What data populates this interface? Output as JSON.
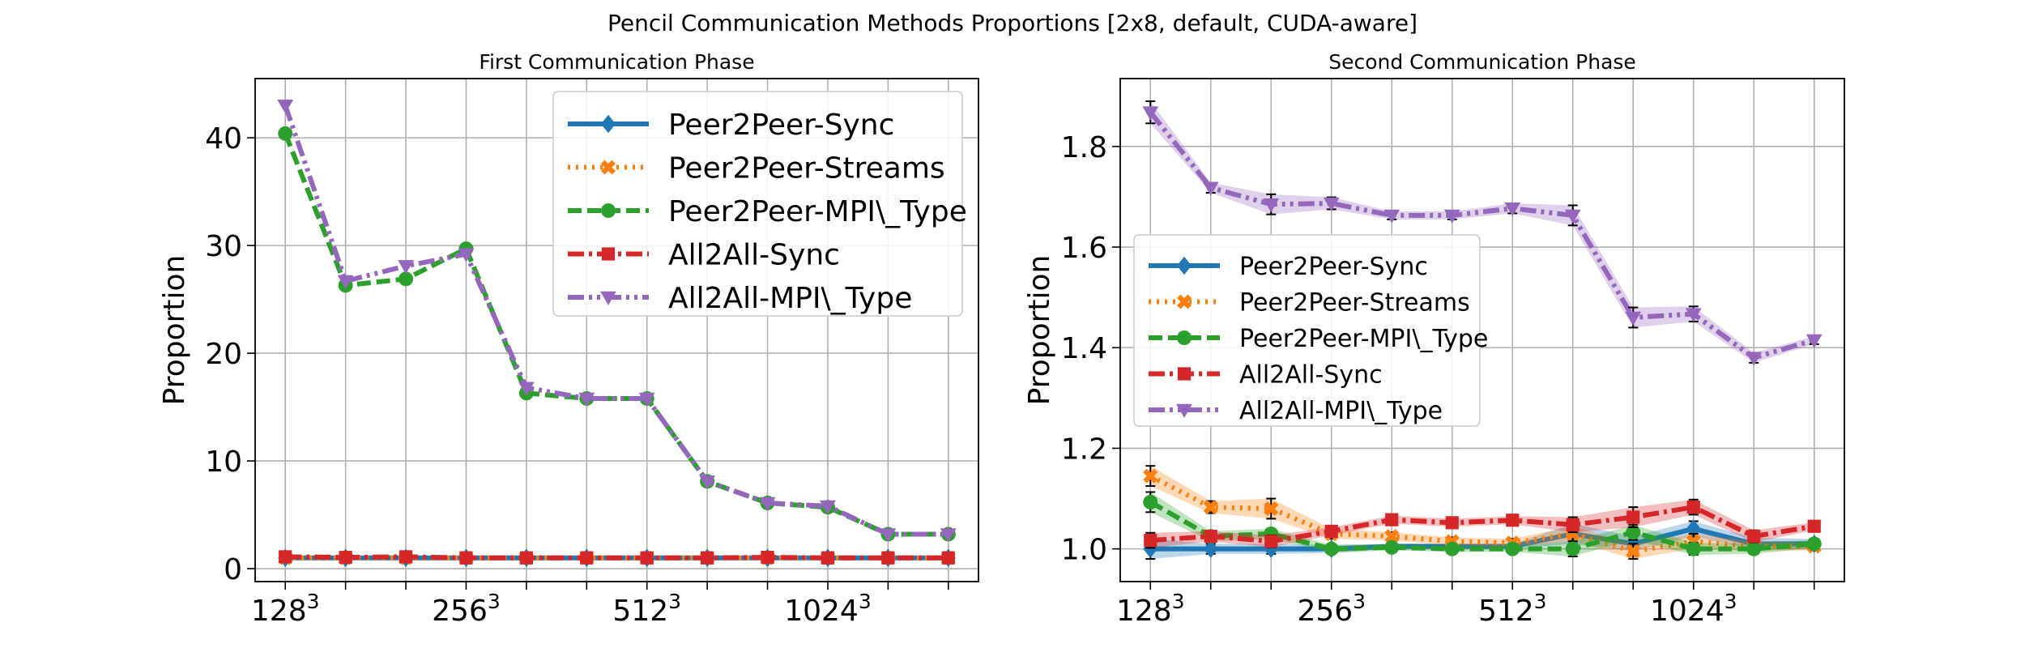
{
  "title": "Pencil Communication Methods Proportions [2x8, default, CUDA-aware]",
  "colors": {
    "Peer2Peer-Sync": "#1f77b4",
    "Peer2Peer-Streams": "#ff7f0e",
    "Peer2Peer-MPI\\_Type": "#2ca02c",
    "All2All-Sync": "#d62728",
    "All2All-MPI\\_Type": "#9467bd"
  },
  "chart_data": [
    {
      "type": "line",
      "title": "First Communication Phase",
      "xlabel": "",
      "ylabel": "Proportion",
      "x": [
        0,
        1,
        2,
        3,
        4,
        5,
        6,
        7,
        8,
        9,
        10,
        11
      ],
      "xtick_positions": [
        0,
        3,
        6,
        9
      ],
      "xtick_bases": [
        "128",
        "256",
        "512",
        "1024"
      ],
      "xtick_exponent": "3",
      "xlim": [
        -0.5,
        11.5
      ],
      "ylim": [
        -1.2,
        45.5
      ],
      "yticks": [
        0,
        10,
        20,
        30,
        40
      ],
      "grid": true,
      "legend": "top-right",
      "series": [
        {
          "name": "Peer2Peer-Sync",
          "values": [
            1,
            1,
            1,
            1,
            1,
            1,
            1,
            1,
            1,
            1,
            1,
            1
          ]
        },
        {
          "name": "Peer2Peer-Streams",
          "values": [
            1,
            1,
            1,
            1,
            1,
            1,
            1,
            1,
            1,
            1,
            1,
            1
          ]
        },
        {
          "name": "Peer2Peer-MPI\\_Type",
          "values": [
            40.4,
            26.3,
            26.9,
            29.7,
            16.3,
            15.8,
            15.8,
            8.1,
            6.1,
            5.7,
            3.2,
            3.2
          ]
        },
        {
          "name": "All2All-Sync",
          "values": [
            1.1,
            1.05,
            1.1,
            1,
            1,
            1,
            1,
            1,
            1.05,
            1,
            1,
            1
          ]
        },
        {
          "name": "All2All-MPI\\_Type",
          "values": [
            43,
            26.7,
            28.1,
            29.2,
            16.8,
            15.8,
            15.8,
            8.1,
            6.1,
            5.8,
            3.2,
            3.2
          ]
        }
      ]
    },
    {
      "type": "line",
      "title": "Second Communication Phase",
      "xlabel": "",
      "ylabel": "Proportion",
      "x": [
        0,
        1,
        2,
        3,
        4,
        5,
        6,
        7,
        8,
        9,
        10,
        11
      ],
      "xtick_positions": [
        0,
        3,
        6,
        9
      ],
      "xtick_bases": [
        "128",
        "256",
        "512",
        "1024"
      ],
      "xtick_exponent": "3",
      "xlim": [
        -0.5,
        11.5
      ],
      "ylim": [
        0.935,
        1.935
      ],
      "yticks": [
        1.0,
        1.2,
        1.4,
        1.6,
        1.8
      ],
      "grid": true,
      "legend": "center-left",
      "series": [
        {
          "name": "Peer2Peer-Sync",
          "values": [
            1.0,
            1.0,
            1.0,
            1.0,
            1.005,
            1.005,
            1.005,
            1.03,
            1.01,
            1.04,
            1.01,
            1.01
          ],
          "err": [
            0.02,
            0.01,
            0.01,
            0.008,
            0.005,
            0.005,
            0.005,
            0.02,
            0.015,
            0.015,
            0.012,
            0.01
          ]
        },
        {
          "name": "Peer2Peer-Streams",
          "values": [
            1.145,
            1.083,
            1.08,
            1.03,
            1.025,
            1.015,
            1.012,
            1.03,
            0.995,
            1.015,
            1.005,
            1.005
          ],
          "err": [
            0.02,
            0.012,
            0.02,
            0.01,
            0.008,
            0.008,
            0.008,
            0.015,
            0.015,
            0.015,
            0.01,
            0.008
          ]
        },
        {
          "name": "Peer2Peer-MPI\\_Type",
          "values": [
            1.093,
            1.025,
            1.03,
            1.0,
            1.003,
            1.0,
            1.0,
            1.0,
            1.033,
            1.0,
            1.0,
            1.01
          ],
          "err": [
            0.02,
            0.01,
            0.01,
            0.008,
            0.006,
            0.006,
            0.006,
            0.015,
            0.015,
            0.012,
            0.01,
            0.008
          ]
        },
        {
          "name": "All2All-Sync",
          "values": [
            1.017,
            1.025,
            1.015,
            1.035,
            1.058,
            1.052,
            1.057,
            1.048,
            1.063,
            1.083,
            1.025,
            1.045
          ],
          "err": [
            0.015,
            0.01,
            0.012,
            0.008,
            0.008,
            0.008,
            0.008,
            0.015,
            0.02,
            0.015,
            0.012,
            0.008
          ]
        },
        {
          "name": "All2All-MPI\\_Type",
          "values": [
            1.868,
            1.718,
            1.685,
            1.687,
            1.663,
            1.663,
            1.677,
            1.663,
            1.46,
            1.467,
            1.38,
            1.415
          ],
          "err": [
            0.022,
            0.01,
            0.02,
            0.012,
            0.008,
            0.008,
            0.01,
            0.02,
            0.02,
            0.015,
            0.01,
            0.008
          ]
        }
      ]
    }
  ]
}
